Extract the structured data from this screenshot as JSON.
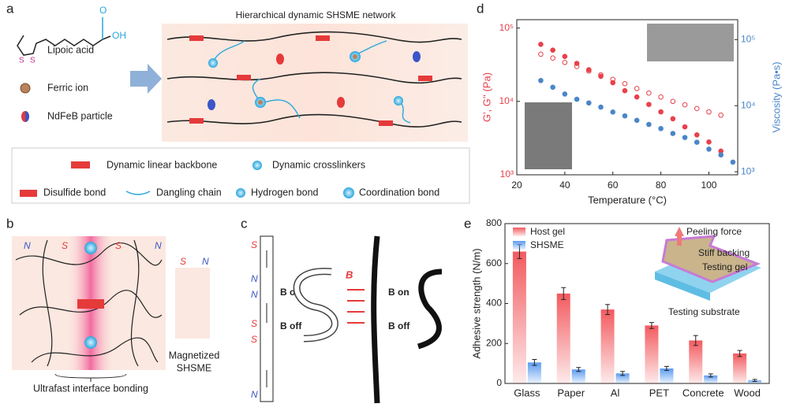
{
  "panel_a": {
    "label": "a",
    "structure": {
      "oh": "OH",
      "o": "O",
      "s1": "S",
      "s2": "S"
    },
    "lipoic_acid": "Lipoic acid",
    "ferric_ion": "Ferric ion",
    "ndfeb": "NdFeB particle",
    "network_title": "Hierarchical dynamic SHSME network",
    "legend": {
      "backbone": "Dynamic linear backbone",
      "crosslinkers": "Dynamic crosslinkers",
      "disulfide": "Disulfide bond",
      "dangling": "Dangling chain",
      "hydrogen": "Hydrogen bond",
      "coordination": "Coordination bond"
    }
  },
  "panel_b": {
    "label": "b",
    "poles": [
      "N",
      "S",
      "S",
      "N"
    ],
    "small_poles": [
      "S",
      "N"
    ],
    "magnetized": "Magnetized",
    "shsme": "SHSME",
    "bonding": "Ultrafast interface bonding"
  },
  "panel_c": {
    "label": "c",
    "column": [
      "S",
      "N",
      "N",
      "S",
      "S",
      "N"
    ],
    "b_on": "B on",
    "b_off": "B off",
    "b": "B",
    "b_on2": "B on",
    "b_off2": "B off"
  },
  "chart_data": [
    {
      "type": "scatter",
      "label": "d",
      "xlabel": "Temperature (°C)",
      "ylabel": "G', G'' (Pa)",
      "y2label": "Viscosity (Pa•s)",
      "xlim": [
        20,
        112
      ],
      "xticks": [
        20,
        40,
        60,
        80,
        100
      ],
      "ylog": true,
      "ylim": [
        1000,
        130000
      ],
      "yticks": [
        {
          "value": 1000,
          "label": "10³"
        },
        {
          "value": 10000,
          "label": "10⁴"
        },
        {
          "value": 100000,
          "label": "10⁵"
        }
      ],
      "y2lim": [
        900,
        200000
      ],
      "y2ticks": [
        {
          "value": 1000,
          "label": "10³"
        },
        {
          "value": 10000,
          "label": "10⁴"
        },
        {
          "value": 100000,
          "label": "10⁵"
        }
      ],
      "series": [
        {
          "color": "#e8414b",
          "filled": true,
          "x": [
            30,
            35,
            40,
            45,
            50,
            55,
            60,
            65,
            70,
            75,
            80,
            85,
            90,
            95,
            100,
            105
          ],
          "values": [
            60000,
            50000,
            41000,
            33000,
            27000,
            22000,
            18000,
            14000,
            11500,
            9100,
            7200,
            5800,
            4500,
            3500,
            2800,
            2100
          ]
        },
        {
          "color": "#e8414b",
          "filled": false,
          "x": [
            30,
            35,
            40,
            45,
            50,
            55,
            60,
            65,
            70,
            75,
            80,
            85,
            90,
            95,
            100,
            105
          ],
          "values": [
            44000,
            39000,
            34000,
            30000,
            26000,
            23000,
            20000,
            17500,
            15000,
            13000,
            11500,
            10000,
            9000,
            8000,
            7200,
            6500
          ]
        },
        {
          "color": "#4a86c8",
          "filled": true,
          "axis": "y2",
          "x": [
            30,
            35,
            40,
            45,
            50,
            55,
            60,
            65,
            70,
            75,
            80,
            85,
            90,
            95,
            100,
            105,
            110
          ],
          "values": [
            24000,
            19000,
            15000,
            12500,
            11000,
            9500,
            8000,
            7000,
            6000,
            5200,
            4500,
            3800,
            3300,
            2800,
            2200,
            1800,
            1400
          ]
        }
      ]
    },
    {
      "type": "bar",
      "label": "e",
      "ylabel": "Adhesive strength (N/m)",
      "categories": [
        "Glass",
        "Paper",
        "Al",
        "PET",
        "Concrete",
        "Wood"
      ],
      "ylim": [
        0,
        800
      ],
      "yticks": [
        0,
        200,
        400,
        600,
        800
      ],
      "series": [
        {
          "name": "Host gel",
          "color": "#f25a5f",
          "values": [
            660,
            450,
            370,
            290,
            215,
            150
          ],
          "errors": [
            35,
            30,
            25,
            15,
            25,
            15
          ]
        },
        {
          "name": "SHSME",
          "color": "#5b9bef",
          "values": [
            105,
            70,
            50,
            75,
            40,
            15
          ],
          "errors": [
            15,
            10,
            10,
            10,
            8,
            5
          ]
        }
      ],
      "annotations": [
        "Peeling force",
        "Stiff backing",
        "Testing gel",
        "Testing substrate"
      ]
    }
  ]
}
